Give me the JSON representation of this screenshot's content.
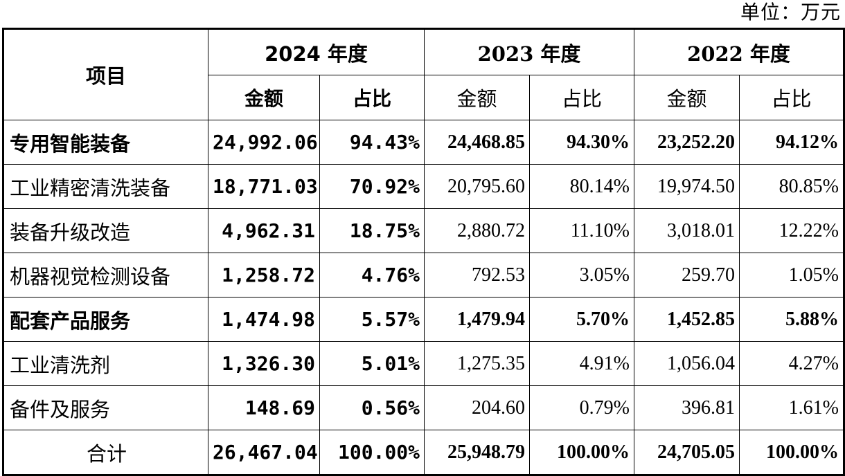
{
  "unit_label": "单位：万元",
  "header": {
    "item": "项目",
    "years": [
      "2024 年度",
      "2023 年度",
      "2022 年度"
    ],
    "amount": "金额",
    "ratio": "占比"
  },
  "rows": [
    {
      "label": "专用智能装备",
      "bold": true,
      "v": [
        "24,992.06",
        "94.43%",
        "24,468.85",
        "94.30%",
        "23,252.20",
        "94.12%"
      ]
    },
    {
      "label": "工业精密清洗装备",
      "bold": false,
      "v": [
        "18,771.03",
        "70.92%",
        "20,795.60",
        "80.14%",
        "19,974.50",
        "80.85%"
      ]
    },
    {
      "label": "装备升级改造",
      "bold": false,
      "v": [
        "4,962.31",
        "18.75%",
        "2,880.72",
        "11.10%",
        "3,018.01",
        "12.22%"
      ]
    },
    {
      "label": "机器视觉检测设备",
      "bold": false,
      "v": [
        "1,258.72",
        "4.76%",
        "792.53",
        "3.05%",
        "259.70",
        "1.05%"
      ]
    },
    {
      "label": "配套产品服务",
      "bold": true,
      "v": [
        "1,474.98",
        "5.57%",
        "1,479.94",
        "5.70%",
        "1,452.85",
        "5.88%"
      ]
    },
    {
      "label": "工业清洗剂",
      "bold": false,
      "v": [
        "1,326.30",
        "5.01%",
        "1,275.35",
        "4.91%",
        "1,056.04",
        "4.27%"
      ]
    },
    {
      "label": "备件及服务",
      "bold": false,
      "v": [
        "148.69",
        "0.56%",
        "204.60",
        "0.79%",
        "396.81",
        "1.61%"
      ]
    },
    {
      "label": "合计",
      "bold": false,
      "v": [
        "26,467.04",
        "100.00%",
        "25,948.79",
        "100.00%",
        "24,705.05",
        "100.00%"
      ]
    }
  ]
}
